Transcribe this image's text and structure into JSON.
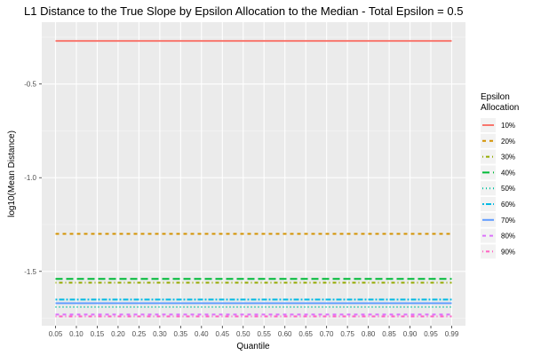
{
  "chart_data": {
    "type": "line",
    "title": "L1 Distance to the True Slope by Epsilon Allocation to the Median - Total Epsilon = 0.5",
    "xlabel": "Quantile",
    "ylabel": "log10(Mean Distance)",
    "x": [
      0.05,
      0.1,
      0.15,
      0.2,
      0.25,
      0.3,
      0.35,
      0.4,
      0.45,
      0.5,
      0.55,
      0.6,
      0.65,
      0.7,
      0.75,
      0.8,
      0.85,
      0.9,
      0.95,
      0.99
    ],
    "x_tick_labels": [
      "0.05",
      "0.10",
      "0.15",
      "0.20",
      "0.25",
      "0.30",
      "0.35",
      "0.40",
      "0.45",
      "0.50",
      "0.55",
      "0.60",
      "0.65",
      "0.70",
      "0.75",
      "0.80",
      "0.85",
      "0.90",
      "0.95",
      "0.99"
    ],
    "y_ticks": [
      -0.5,
      -1.0,
      -1.5
    ],
    "y_tick_labels": [
      "-0.5",
      "-1.0",
      "-1.5"
    ],
    "ylim": [
      -1.79,
      -0.17
    ],
    "grid": true,
    "legend": {
      "title_line1": "Epsilon",
      "title_line2": "Allocation",
      "placement": "right"
    },
    "series": [
      {
        "name": "10%",
        "color": "#F8766D",
        "dash": "solid",
        "values": [
          -0.27,
          -0.27,
          -0.27,
          -0.27,
          -0.27,
          -0.27,
          -0.27,
          -0.27,
          -0.27,
          -0.27,
          -0.27,
          -0.27,
          -0.27,
          -0.27,
          -0.27,
          -0.27,
          -0.27,
          -0.27,
          -0.27,
          -0.27
        ]
      },
      {
        "name": "20%",
        "color": "#D39200",
        "dash": "dashed",
        "values": [
          -1.3,
          -1.3,
          -1.3,
          -1.3,
          -1.3,
          -1.3,
          -1.3,
          -1.3,
          -1.3,
          -1.3,
          -1.3,
          -1.3,
          -1.3,
          -1.3,
          -1.3,
          -1.3,
          -1.3,
          -1.3,
          -1.3,
          -1.3
        ]
      },
      {
        "name": "30%",
        "color": "#93AA00",
        "dash": "dotdash",
        "values": [
          -1.56,
          -1.56,
          -1.56,
          -1.56,
          -1.56,
          -1.56,
          -1.56,
          -1.56,
          -1.56,
          -1.56,
          -1.56,
          -1.56,
          -1.56,
          -1.56,
          -1.56,
          -1.56,
          -1.56,
          -1.56,
          -1.56,
          -1.56
        ]
      },
      {
        "name": "40%",
        "color": "#00BA38",
        "dash": "longdash",
        "values": [
          -1.54,
          -1.54,
          -1.54,
          -1.54,
          -1.54,
          -1.54,
          -1.54,
          -1.54,
          -1.54,
          -1.54,
          -1.54,
          -1.54,
          -1.54,
          -1.54,
          -1.54,
          -1.54,
          -1.54,
          -1.54,
          -1.54,
          -1.54
        ]
      },
      {
        "name": "50%",
        "color": "#00C19F",
        "dash": "dotted",
        "values": [
          -1.69,
          -1.69,
          -1.69,
          -1.69,
          -1.69,
          -1.69,
          -1.69,
          -1.69,
          -1.69,
          -1.69,
          -1.69,
          -1.69,
          -1.69,
          -1.69,
          -1.69,
          -1.69,
          -1.69,
          -1.69,
          -1.69,
          -1.69
        ]
      },
      {
        "name": "60%",
        "color": "#00B9E3",
        "dash": "twodash",
        "values": [
          -1.65,
          -1.65,
          -1.65,
          -1.65,
          -1.65,
          -1.65,
          -1.65,
          -1.65,
          -1.65,
          -1.65,
          -1.65,
          -1.65,
          -1.65,
          -1.65,
          -1.65,
          -1.65,
          -1.65,
          -1.65,
          -1.65,
          -1.65
        ]
      },
      {
        "name": "70%",
        "color": "#619CFF",
        "dash": "solid",
        "values": [
          -1.67,
          -1.67,
          -1.67,
          -1.67,
          -1.67,
          -1.67,
          -1.67,
          -1.67,
          -1.67,
          -1.67,
          -1.67,
          -1.67,
          -1.67,
          -1.67,
          -1.67,
          -1.67,
          -1.67,
          -1.67,
          -1.67,
          -1.67
        ]
      },
      {
        "name": "80%",
        "color": "#DB72FB",
        "dash": "dashed",
        "values": [
          -1.73,
          -1.73,
          -1.73,
          -1.73,
          -1.73,
          -1.73,
          -1.73,
          -1.73,
          -1.73,
          -1.73,
          -1.73,
          -1.73,
          -1.73,
          -1.73,
          -1.73,
          -1.73,
          -1.73,
          -1.73,
          -1.73,
          -1.73
        ]
      },
      {
        "name": "90%",
        "color": "#FF61C3",
        "dash": "dotdash",
        "values": [
          -1.74,
          -1.74,
          -1.74,
          -1.74,
          -1.74,
          -1.74,
          -1.74,
          -1.74,
          -1.74,
          -1.74,
          -1.74,
          -1.74,
          -1.74,
          -1.74,
          -1.74,
          -1.74,
          -1.74,
          -1.74,
          -1.74,
          -1.74
        ]
      }
    ]
  }
}
